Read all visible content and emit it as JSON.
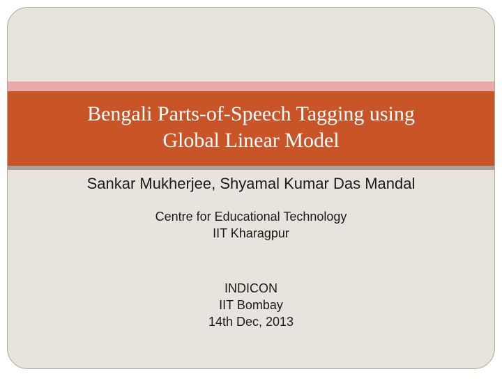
{
  "layout": {
    "slide_bg": "#e8e4dd",
    "slide_border": "#b0a898",
    "slide_radius": 30,
    "outer_bg": "#ffffff"
  },
  "title_block": {
    "pink_band_color": "#e9a9a9",
    "pink_band_height": 14,
    "main_band_color": "#c85428",
    "title_text_color": "#ffffff",
    "title_fontsize": 30,
    "gray_band_color": "#a8a296",
    "gray_band_height": 6,
    "title_line1": "Bengali Parts-of-Speech Tagging using",
    "title_line2": "Global Linear Model"
  },
  "body": {
    "text_color": "#1a1a1a",
    "authors": "Sankar Mukherjee, Shyamal Kumar Das Mandal",
    "authors_fontsize": 22,
    "affiliation_line1": "Centre for Educational Technology",
    "affiliation_line2": "IIT Kharagpur",
    "affiliation_fontsize": 18,
    "conference_line1": "INDICON",
    "conference_line2": "IIT Bombay",
    "conference_line3": "14th Dec, 2013",
    "conference_fontsize": 18
  }
}
